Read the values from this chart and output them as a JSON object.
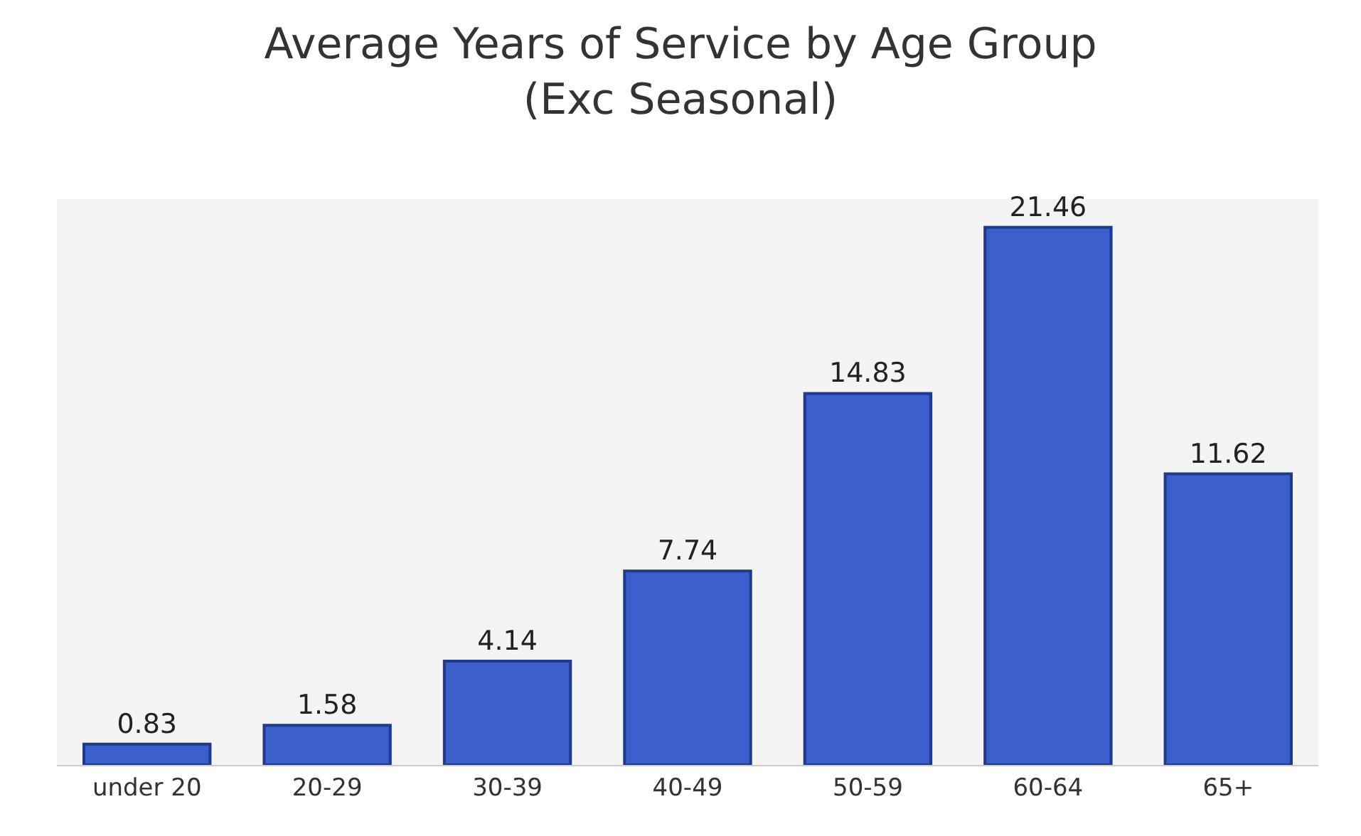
{
  "chart_data": {
    "type": "bar",
    "title": "Average Years of Service by Age Group\n(Exc Seasonal)",
    "categories": [
      "under 20",
      "20-29",
      "30-39",
      "40-49",
      "50-59",
      "60-64",
      "65+"
    ],
    "values": [
      0.83,
      1.58,
      4.14,
      7.74,
      14.83,
      21.46,
      11.62
    ],
    "color": "#3a5fcd",
    "data_labels": true,
    "grid": false,
    "tick_labels": "x"
  }
}
